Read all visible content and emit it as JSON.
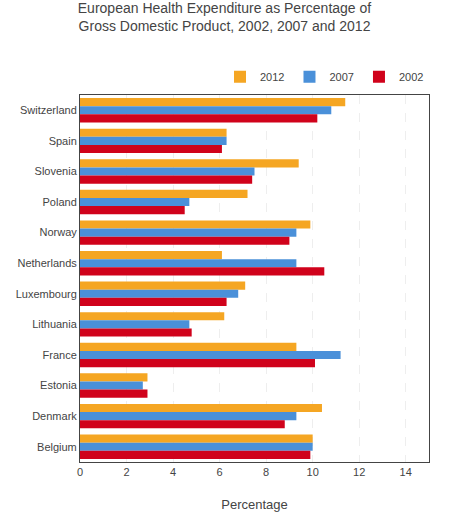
{
  "chart_data": {
    "type": "bar",
    "orientation": "horizontal",
    "title": "European Health Expenditure as Percentage of\nGross Domestic Product, 2002, 2007 and 2012",
    "categories": [
      "Switzerland",
      "Spain",
      "Slovenia",
      "Poland",
      "Norway",
      "Netherlands",
      "Luxembourg",
      "Lithuania",
      "France",
      "Estonia",
      "Denmark",
      "Belgium"
    ],
    "series": [
      {
        "name": "2012",
        "color": "#F5A623",
        "values": [
          11.4,
          6.3,
          9.4,
          7.2,
          9.9,
          6.1,
          7.1,
          6.2,
          9.3,
          2.9,
          10.4,
          10.0
        ]
      },
      {
        "name": "2007",
        "color": "#4A90D9",
        "values": [
          10.8,
          6.3,
          7.5,
          4.7,
          9.3,
          9.3,
          6.8,
          4.7,
          11.2,
          2.7,
          9.3,
          10.0
        ]
      },
      {
        "name": "2002",
        "color": "#D0021B",
        "values": [
          10.2,
          6.1,
          7.4,
          4.5,
          9.0,
          10.5,
          6.3,
          4.8,
          10.1,
          2.9,
          8.8,
          9.9
        ]
      }
    ],
    "xlabel": "Percentage",
    "xlim": [
      0,
      15
    ],
    "xticks": [
      0,
      2,
      4,
      6,
      8,
      10,
      12,
      14
    ],
    "grid": true,
    "legend": "upper right"
  }
}
